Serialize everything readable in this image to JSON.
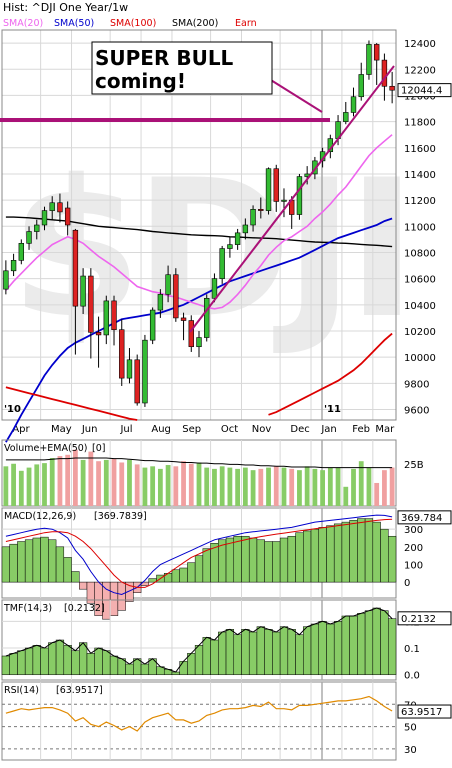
{
  "header": {
    "title": "Hist: ^DJI One Year/1w"
  },
  "legend": [
    {
      "label": "SMA(20)",
      "color": "#ee66ee"
    },
    {
      "label": "SMA(50)",
      "color": "#0000cc"
    },
    {
      "label": "SMA(100)",
      "color": "#dd0000"
    },
    {
      "label": "SMA(200)",
      "color": "#000000"
    },
    {
      "label": "Earn",
      "color": "#dd0000"
    }
  ],
  "annotation": {
    "line1": "SUPER BULL",
    "line2": "coming!"
  },
  "watermark": "$DJI",
  "panels": {
    "volume_label": "Volume+EMA(50)",
    "volume_suffix": "[0]",
    "volume_tick": "25B",
    "macd_label": "MACD(12,26,9)",
    "macd_value": "[369.7839]",
    "tmf_label": "TMF(14,3)",
    "tmf_value": "[0.2132]",
    "rsi_label": "RSI(14)",
    "rsi_value": "[63.9517]"
  },
  "colors": {
    "up": "#33bb33",
    "down": "#dd2222",
    "trend": "#aa1177",
    "grid": "#d8d8d8"
  },
  "chart_data": {
    "type": "candlestick",
    "x_ticks": [
      "Apr",
      "May",
      "Jun",
      "Jul",
      "Aug",
      "Sep",
      "Oct",
      "Nov",
      "Dec",
      "Jan",
      "Feb",
      "Mar"
    ],
    "year_markers": [
      "'10",
      "'11"
    ],
    "y_ticks": [
      9600,
      9800,
      10000,
      10200,
      10400,
      10600,
      10800,
      11000,
      11200,
      11400,
      11600,
      11800,
      12000,
      12200,
      12400
    ],
    "ylim": [
      9520,
      12500
    ],
    "last_price": "12044.4",
    "candles": [
      {
        "o": 10520,
        "c": 10660,
        "h": 10740,
        "l": 10480
      },
      {
        "o": 10660,
        "c": 10740,
        "h": 10790,
        "l": 10620
      },
      {
        "o": 10740,
        "c": 10870,
        "h": 10900,
        "l": 10710
      },
      {
        "o": 10870,
        "c": 10960,
        "h": 11000,
        "l": 10820
      },
      {
        "o": 10960,
        "c": 11010,
        "h": 11050,
        "l": 10900
      },
      {
        "o": 11010,
        "c": 11120,
        "h": 11150,
        "l": 10970
      },
      {
        "o": 11120,
        "c": 11180,
        "h": 11230,
        "l": 11050
      },
      {
        "o": 11180,
        "c": 11110,
        "h": 11250,
        "l": 11030
      },
      {
        "o": 11140,
        "c": 11010,
        "h": 11190,
        "l": 10930
      },
      {
        "o": 10970,
        "c": 10390,
        "h": 10980,
        "l": 10020
      },
      {
        "o": 10390,
        "c": 10620,
        "h": 10680,
        "l": 10330
      },
      {
        "o": 10620,
        "c": 10190,
        "h": 10680,
        "l": 9990
      },
      {
        "o": 10190,
        "c": 10170,
        "h": 10310,
        "l": 9920
      },
      {
        "o": 10170,
        "c": 10430,
        "h": 10470,
        "l": 10100
      },
      {
        "o": 10430,
        "c": 10210,
        "h": 10470,
        "l": 10090
      },
      {
        "o": 10210,
        "c": 9840,
        "h": 10290,
        "l": 9780
      },
      {
        "o": 9840,
        "c": 9980,
        "h": 10070,
        "l": 9800
      },
      {
        "o": 9980,
        "c": 9650,
        "h": 10020,
        "l": 9630
      },
      {
        "o": 9650,
        "c": 10130,
        "h": 10170,
        "l": 9620
      },
      {
        "o": 10130,
        "c": 10360,
        "h": 10380,
        "l": 10100
      },
      {
        "o": 10360,
        "c": 10480,
        "h": 10520,
        "l": 10300
      },
      {
        "o": 10480,
        "c": 10630,
        "h": 10700,
        "l": 10420
      },
      {
        "o": 10630,
        "c": 10300,
        "h": 10680,
        "l": 10270
      },
      {
        "o": 10300,
        "c": 10280,
        "h": 10340,
        "l": 10130
      },
      {
        "o": 10280,
        "c": 10080,
        "h": 10320,
        "l": 10040
      },
      {
        "o": 10080,
        "c": 10150,
        "h": 10200,
        "l": 10000
      },
      {
        "o": 10150,
        "c": 10450,
        "h": 10480,
        "l": 10120
      },
      {
        "o": 10450,
        "c": 10600,
        "h": 10640,
        "l": 10420
      },
      {
        "o": 10600,
        "c": 10830,
        "h": 10850,
        "l": 10560
      },
      {
        "o": 10830,
        "c": 10860,
        "h": 10920,
        "l": 10760
      },
      {
        "o": 10860,
        "c": 10950,
        "h": 10980,
        "l": 10820
      },
      {
        "o": 10950,
        "c": 11010,
        "h": 11060,
        "l": 10900
      },
      {
        "o": 11010,
        "c": 11130,
        "h": 11160,
        "l": 10960
      },
      {
        "o": 11130,
        "c": 11120,
        "h": 11220,
        "l": 11060
      },
      {
        "o": 11120,
        "c": 11440,
        "h": 11450,
        "l": 11090
      },
      {
        "o": 11440,
        "c": 11190,
        "h": 11470,
        "l": 11110
      },
      {
        "o": 11190,
        "c": 11200,
        "h": 11290,
        "l": 11070
      },
      {
        "o": 11200,
        "c": 11090,
        "h": 11230,
        "l": 10980
      },
      {
        "o": 11090,
        "c": 11380,
        "h": 11400,
        "l": 11050
      },
      {
        "o": 11380,
        "c": 11400,
        "h": 11460,
        "l": 11320
      },
      {
        "o": 11400,
        "c": 11500,
        "h": 11530,
        "l": 11360
      },
      {
        "o": 11500,
        "c": 11570,
        "h": 11600,
        "l": 11450
      },
      {
        "o": 11570,
        "c": 11670,
        "h": 11700,
        "l": 11520
      },
      {
        "o": 11670,
        "c": 11800,
        "h": 11850,
        "l": 11620
      },
      {
        "o": 11800,
        "c": 11870,
        "h": 11950,
        "l": 11780
      },
      {
        "o": 11870,
        "c": 11990,
        "h": 12060,
        "l": 11840
      },
      {
        "o": 11990,
        "c": 12160,
        "h": 12250,
        "l": 11960
      },
      {
        "o": 12160,
        "c": 12390,
        "h": 12420,
        "l": 12120
      },
      {
        "o": 12390,
        "c": 12270,
        "h": 12400,
        "l": 12080
      },
      {
        "o": 12270,
        "c": 12070,
        "h": 12320,
        "l": 11960
      },
      {
        "o": 12070,
        "c": 12040,
        "h": 12180,
        "l": 11940
      }
    ],
    "sma20": [
      10510,
      10580,
      10640,
      10700,
      10760,
      10810,
      10860,
      10890,
      10920,
      10900,
      10870,
      10820,
      10770,
      10730,
      10690,
      10640,
      10590,
      10540,
      10520,
      10500,
      10490,
      10470,
      10460,
      10440,
      10420,
      10400,
      10380,
      10370,
      10380,
      10420,
      10480,
      10550,
      10630,
      10700,
      10780,
      10840,
      10890,
      10920,
      10960,
      11000,
      11060,
      11110,
      11170,
      11240,
      11300,
      11380,
      11460,
      11540,
      11600,
      11650,
      11700
    ],
    "sma50": [
      9350,
      9450,
      9560,
      9660,
      9760,
      9860,
      9940,
      10010,
      10070,
      10110,
      10140,
      10170,
      10200,
      10230,
      10260,
      10290,
      10300,
      10310,
      10320,
      10330,
      10340,
      10360,
      10380,
      10400,
      10430,
      10460,
      10490,
      10520,
      10550,
      10580,
      10600,
      10620,
      10640,
      10660,
      10680,
      10700,
      10720,
      10740,
      10760,
      10790,
      10820,
      10850,
      10880,
      10910,
      10930,
      10950,
      10970,
      10990,
      11010,
      11040,
      11060
    ],
    "sma200": [
      11070,
      11070,
      11068,
      11065,
      11060,
      11055,
      11050,
      11045,
      11040,
      11030,
      11020,
      11010,
      11000,
      10995,
      10990,
      10985,
      10980,
      10975,
      10968,
      10960,
      10955,
      10950,
      10945,
      10940,
      10935,
      10932,
      10930,
      10928,
      10925,
      10920,
      10918,
      10915,
      10912,
      10910,
      10908,
      10905,
      10900,
      10895,
      10890,
      10885,
      10880,
      10878,
      10876,
      10872,
      10870,
      10866,
      10862,
      10858,
      10855,
      10850,
      10845
    ],
    "sma100": [
      null,
      null,
      null,
      null,
      null,
      null,
      null,
      null,
      null,
      null,
      null,
      null,
      null,
      null,
      null,
      null,
      null,
      null,
      null,
      null,
      null,
      null,
      null,
      null,
      null,
      null,
      null,
      null,
      null,
      null,
      null,
      null,
      null,
      null,
      9560,
      9580,
      9610,
      9640,
      9670,
      9700,
      9730,
      9760,
      9790,
      9820,
      9860,
      9900,
      9950,
      10010,
      10070,
      10130,
      10180
    ],
    "earn_red": [
      9770,
      9755,
      9740,
      9725,
      9710,
      9695,
      9680,
      9665,
      9650,
      9635,
      9620,
      9605,
      9590,
      9575,
      9560,
      9545,
      9530,
      9520
    ],
    "volume": [
      0.62,
      0.66,
      0.55,
      0.6,
      0.65,
      0.67,
      0.75,
      0.78,
      0.8,
      0.88,
      0.72,
      0.85,
      0.7,
      0.72,
      0.74,
      0.68,
      0.72,
      0.65,
      0.6,
      0.62,
      0.58,
      0.64,
      0.62,
      0.7,
      0.66,
      0.68,
      0.6,
      0.58,
      0.62,
      0.6,
      0.58,
      0.6,
      0.56,
      0.58,
      0.6,
      0.62,
      0.6,
      0.58,
      0.56,
      0.62,
      0.58,
      0.56,
      0.6,
      0.6,
      0.3,
      0.58,
      0.7,
      0.6,
      0.36,
      0.56,
      0.6
    ],
    "volume_ema": [
      0.72,
      0.72,
      0.72,
      0.72,
      0.72,
      0.72,
      0.73,
      0.74,
      0.74,
      0.75,
      0.75,
      0.75,
      0.75,
      0.75,
      0.74,
      0.74,
      0.73,
      0.72,
      0.71,
      0.71,
      0.7,
      0.7,
      0.69,
      0.68,
      0.68,
      0.67,
      0.67,
      0.66,
      0.66,
      0.65,
      0.65,
      0.64,
      0.64,
      0.63,
      0.63,
      0.62,
      0.62,
      0.61,
      0.61,
      0.61,
      0.61,
      0.6,
      0.6,
      0.6,
      0.6,
      0.6,
      0.6,
      0.6,
      0.6,
      0.6,
      0.6
    ],
    "macd_ticks": [
      300,
      200,
      100,
      0
    ],
    "macd_last": "369.784",
    "macd_ylim": [
      -90,
      420
    ],
    "macd_line": [
      260,
      270,
      280,
      290,
      300,
      305,
      300,
      280,
      250,
      180,
      130,
      60,
      0,
      -40,
      -60,
      -70,
      -50,
      -30,
      10,
      60,
      100,
      120,
      140,
      160,
      180,
      200,
      220,
      240,
      250,
      260,
      270,
      280,
      285,
      290,
      295,
      300,
      305,
      310,
      320,
      330,
      340,
      345,
      350,
      355,
      360,
      365,
      370,
      375,
      380,
      378,
      369.78
    ],
    "macd_signal": [
      230,
      240,
      250,
      260,
      270,
      280,
      285,
      285,
      280,
      260,
      230,
      190,
      140,
      90,
      40,
      0,
      -20,
      -30,
      -30,
      -10,
      20,
      50,
      80,
      110,
      140,
      160,
      180,
      195,
      210,
      220,
      230,
      240,
      250,
      258,
      265,
      272,
      278,
      284,
      290,
      296,
      302,
      308,
      314,
      320,
      326,
      332,
      338,
      344,
      350,
      354,
      356
    ],
    "macd_hist": [
      200,
      215,
      230,
      240,
      250,
      255,
      240,
      200,
      140,
      60,
      -40,
      -120,
      -190,
      -210,
      -190,
      -160,
      -110,
      -60,
      -20,
      20,
      40,
      50,
      70,
      80,
      110,
      150,
      190,
      220,
      240,
      250,
      260,
      260,
      250,
      240,
      230,
      230,
      250,
      260,
      280,
      290,
      300,
      310,
      320,
      330,
      340,
      350,
      360,
      360,
      340,
      300,
      260
    ],
    "tmf_ticks": [
      "0.2",
      "0.1",
      "0.0"
    ],
    "tmf_last": "0.2132",
    "tmf_ylim": [
      -0.02,
      0.28
    ],
    "tmf": [
      0.07,
      0.08,
      0.09,
      0.1,
      0.11,
      0.1,
      0.12,
      0.13,
      0.11,
      0.09,
      0.12,
      0.08,
      0.1,
      0.09,
      0.07,
      0.06,
      0.04,
      0.06,
      0.04,
      0.06,
      0.03,
      0.02,
      0.01,
      0.05,
      0.08,
      0.11,
      0.14,
      0.13,
      0.16,
      0.17,
      0.15,
      0.17,
      0.16,
      0.18,
      0.17,
      0.16,
      0.18,
      0.17,
      0.15,
      0.18,
      0.19,
      0.2,
      0.19,
      0.2,
      0.22,
      0.22,
      0.23,
      0.24,
      0.25,
      0.24,
      0.21
    ],
    "rsi_ticks": [
      70,
      50,
      30
    ],
    "rsi_last": "63.9517",
    "rsi_ylim": [
      20,
      90
    ],
    "rsi": [
      62,
      64,
      66,
      65,
      66,
      67,
      67,
      65,
      62,
      55,
      58,
      52,
      50,
      54,
      51,
      47,
      50,
      46,
      54,
      58,
      60,
      62,
      56,
      56,
      53,
      55,
      60,
      62,
      65,
      66,
      66,
      67,
      69,
      68,
      72,
      66,
      66,
      65,
      69,
      69,
      70,
      71,
      72,
      73,
      73,
      74,
      75,
      77,
      73,
      68,
      63.95
    ]
  }
}
